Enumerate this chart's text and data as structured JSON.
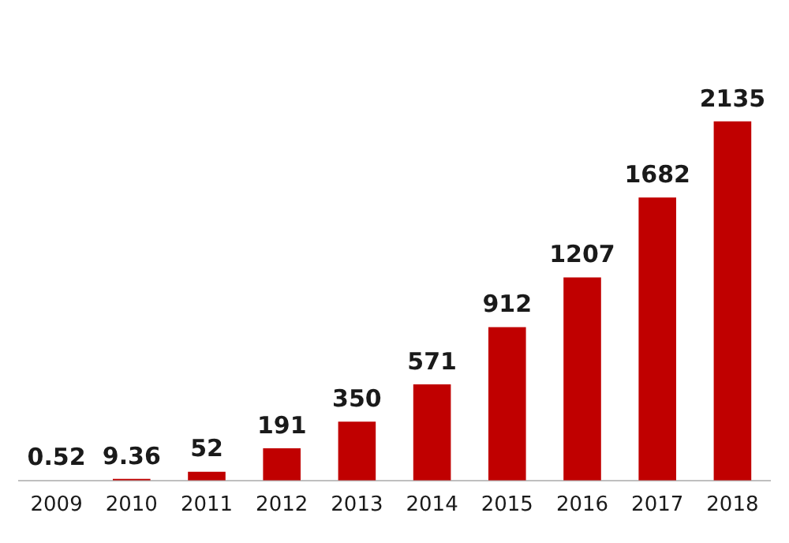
{
  "chart_data": {
    "type": "bar",
    "categories": [
      "2009",
      "2010",
      "2011",
      "2012",
      "2013",
      "2014",
      "2015",
      "2016",
      "2017",
      "2018"
    ],
    "values": [
      0.52,
      9.36,
      52,
      191,
      350,
      571,
      912,
      1207,
      1682,
      2135
    ],
    "color": "#c00000",
    "data_labels": true,
    "grid": false,
    "legend": false
  }
}
